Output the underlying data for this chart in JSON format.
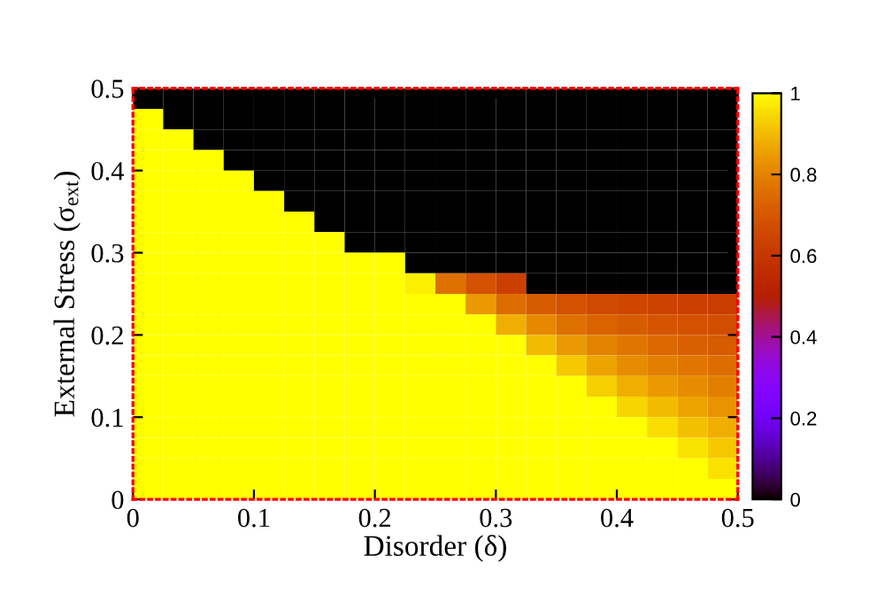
{
  "chart_data": {
    "type": "heatmap",
    "xlabel": "Disorder (δ)",
    "ylabel": "External Stress (σ$_{ext}$)",
    "x": [
      0.0125,
      0.0375,
      0.0625,
      0.0875,
      0.1125,
      0.1375,
      0.1625,
      0.1875,
      0.2125,
      0.2375,
      0.2625,
      0.2875,
      0.3125,
      0.3375,
      0.3625,
      0.3875,
      0.4125,
      0.4375,
      0.4625,
      0.4875
    ],
    "y": [
      0.4875,
      0.4625,
      0.4375,
      0.4125,
      0.3875,
      0.3625,
      0.3375,
      0.3125,
      0.2875,
      0.2625,
      0.2375,
      0.2125,
      0.1875,
      0.1625,
      0.1375,
      0.1125,
      0.0875,
      0.0625,
      0.0375,
      0.0125
    ],
    "xlim": [
      0,
      0.5
    ],
    "ylim": [
      0,
      0.5
    ],
    "xticks": [
      0,
      0.1,
      0.2,
      0.3,
      0.4,
      0.5
    ],
    "yticks": [
      0,
      0.1,
      0.2,
      0.3,
      0.4,
      0.5
    ],
    "clim": [
      0,
      1
    ],
    "cticks": [
      0,
      0.2,
      0.4,
      0.6,
      0.8,
      1
    ],
    "cells": [
      [
        0,
        0,
        0,
        0,
        0,
        0,
        0,
        0,
        0,
        0,
        0,
        0,
        0,
        0,
        0,
        0,
        0,
        0,
        0,
        0
      ],
      [
        1,
        0,
        0,
        0,
        0,
        0,
        0,
        0,
        0,
        0,
        0,
        0,
        0,
        0,
        0,
        0,
        0,
        0,
        0,
        0
      ],
      [
        1,
        1,
        0,
        0,
        0,
        0,
        0,
        0,
        0,
        0,
        0,
        0,
        0,
        0,
        0,
        0,
        0,
        0,
        0,
        0
      ],
      [
        1,
        1,
        1,
        0,
        0,
        0,
        0,
        0,
        0,
        0,
        0,
        0,
        0,
        0,
        0,
        0,
        0,
        0,
        0,
        0
      ],
      [
        1,
        1,
        1,
        1,
        0,
        0,
        0,
        0,
        0,
        0,
        0,
        0,
        0,
        0,
        0,
        0,
        0,
        0,
        0,
        0
      ],
      [
        1,
        1,
        1,
        1,
        1,
        0,
        0,
        0,
        0,
        0,
        0,
        0,
        0,
        0,
        0,
        0,
        0,
        0,
        0,
        0
      ],
      [
        1,
        1,
        1,
        1,
        1,
        1,
        0,
        0,
        0,
        0,
        0,
        0,
        0,
        0,
        0,
        0,
        0,
        0,
        0,
        0
      ],
      [
        1,
        1,
        1,
        1,
        1,
        1,
        1,
        0,
        0,
        0,
        0,
        0,
        0,
        0,
        0,
        0,
        0,
        0,
        0,
        0
      ],
      [
        1,
        1,
        1,
        1,
        1,
        1,
        1,
        1,
        1,
        0,
        0,
        0,
        0,
        0,
        0,
        0,
        0,
        0,
        0,
        0
      ],
      [
        1,
        1,
        1,
        1,
        1,
        1,
        1,
        1,
        1,
        0.98,
        0.76,
        0.68,
        0.63,
        0,
        0,
        0,
        0,
        0,
        0,
        0
      ],
      [
        1,
        1,
        1,
        1,
        1,
        1,
        1,
        1,
        1,
        1,
        1,
        0.84,
        0.75,
        0.71,
        0.68,
        0.66,
        0.65,
        0.64,
        0.63,
        0.62
      ],
      [
        1,
        1,
        1,
        1,
        1,
        1,
        1,
        1,
        1,
        1,
        1,
        1,
        0.88,
        0.81,
        0.76,
        0.73,
        0.71,
        0.69,
        0.68,
        0.67
      ],
      [
        1,
        1,
        1,
        1,
        1,
        1,
        1,
        1,
        1,
        1,
        1,
        1,
        1,
        0.9,
        0.84,
        0.8,
        0.77,
        0.74,
        0.72,
        0.71
      ],
      [
        1,
        1,
        1,
        1,
        1,
        1,
        1,
        1,
        1,
        1,
        1,
        1,
        1,
        1,
        0.92,
        0.86,
        0.82,
        0.79,
        0.77,
        0.75
      ],
      [
        1,
        1,
        1,
        1,
        1,
        1,
        1,
        1,
        1,
        1,
        1,
        1,
        1,
        1,
        1,
        0.93,
        0.88,
        0.84,
        0.82,
        0.79
      ],
      [
        1,
        1,
        1,
        1,
        1,
        1,
        1,
        1,
        1,
        1,
        1,
        1,
        1,
        1,
        1,
        1,
        0.94,
        0.9,
        0.86,
        0.83
      ],
      [
        1,
        1,
        1,
        1,
        1,
        1,
        1,
        1,
        1,
        1,
        1,
        1,
        1,
        1,
        1,
        1,
        1,
        0.95,
        0.91,
        0.88
      ],
      [
        1,
        1,
        1,
        1,
        1,
        1,
        1,
        1,
        1,
        1,
        1,
        1,
        1,
        1,
        1,
        1,
        1,
        1,
        0.96,
        0.92
      ],
      [
        1,
        1,
        1,
        1,
        1,
        1,
        1,
        1,
        1,
        1,
        1,
        1,
        1,
        1,
        1,
        1,
        1,
        1,
        1,
        0.96
      ],
      [
        1,
        1,
        1,
        1,
        1,
        1,
        1,
        1,
        1,
        1,
        1,
        1,
        1,
        1,
        1,
        1,
        1,
        1,
        1,
        1
      ]
    ]
  }
}
